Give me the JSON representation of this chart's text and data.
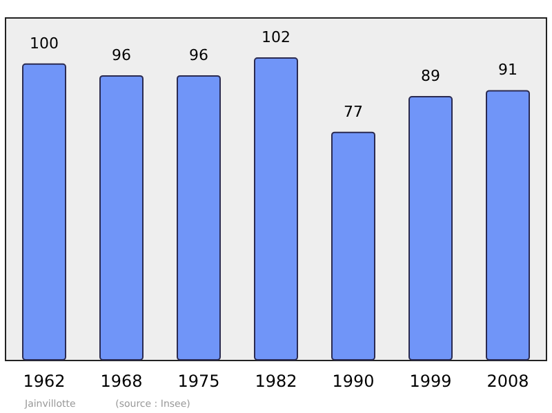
{
  "chart_data": {
    "type": "bar",
    "categories": [
      "1962",
      "1968",
      "1975",
      "1982",
      "1990",
      "1999",
      "2008"
    ],
    "values": [
      100,
      96,
      96,
      102,
      77,
      89,
      91
    ],
    "color": "#7095f8",
    "data_labels": true,
    "annotations": [
      "Jainvillotte",
      "(source : Insee)"
    ]
  }
}
